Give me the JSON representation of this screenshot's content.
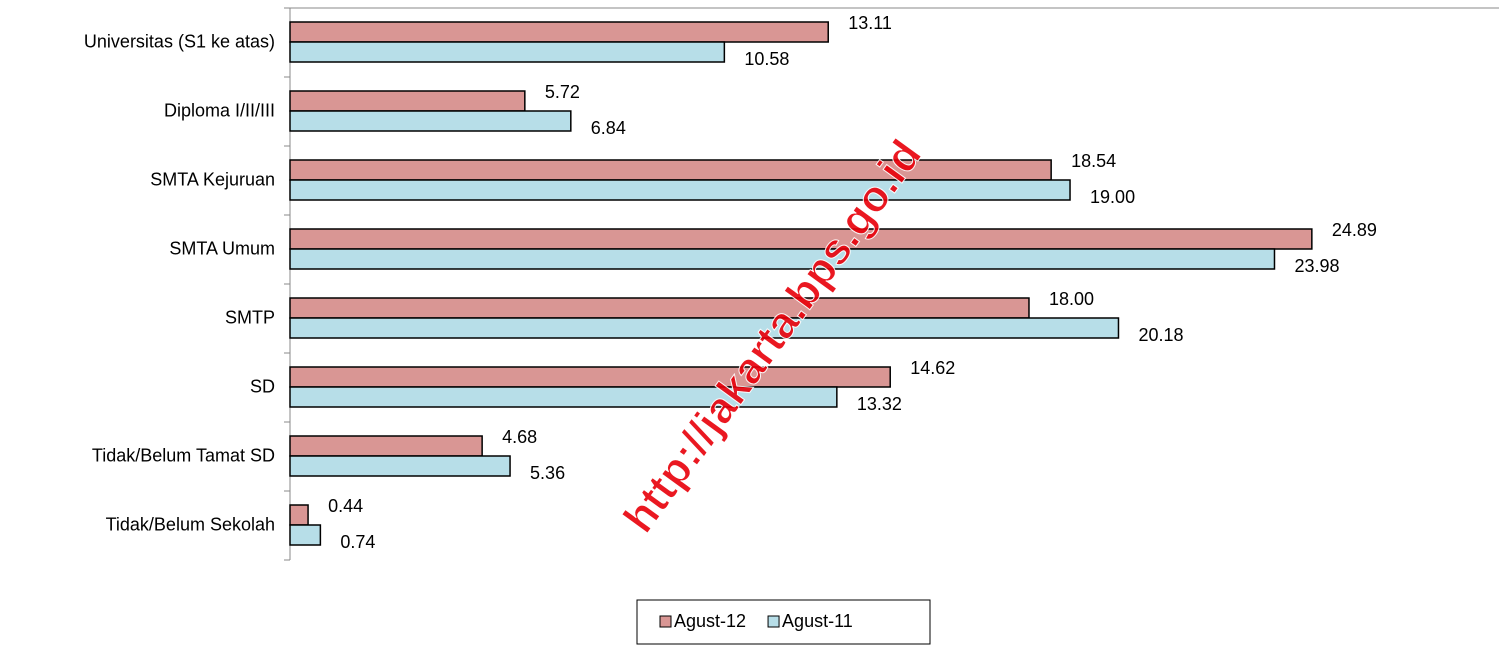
{
  "chart_data": {
    "type": "bar",
    "orientation": "horizontal",
    "categories": [
      "Universitas (S1 ke atas)",
      "Diploma I/II/III",
      "SMTA Kejuruan",
      "SMTA  Umum",
      "SMTP",
      "SD",
      "Tidak/Belum Tamat SD",
      "Tidak/Belum Sekolah"
    ],
    "series": [
      {
        "name": "Agust-12",
        "color": "#d99694",
        "values": [
          13.11,
          5.72,
          18.54,
          24.89,
          18.0,
          14.62,
          4.68,
          0.44
        ],
        "value_labels": [
          "13.11",
          "5.72",
          "18.54",
          "24.89",
          "18.00",
          "14.62",
          "4.68",
          "0.44"
        ]
      },
      {
        "name": "Agust-11",
        "color": "#b7dee8",
        "values": [
          10.58,
          6.84,
          19.0,
          23.98,
          20.18,
          13.32,
          5.36,
          0.74
        ],
        "value_labels": [
          "10.58",
          "6.84",
          "19.00",
          "23.98",
          "20.18",
          "13.32",
          "5.36",
          "0.74"
        ]
      }
    ],
    "xlim": [
      0,
      29.4
    ],
    "legend": "bottom",
    "watermark": "http://jakarta.bps.go.id"
  }
}
